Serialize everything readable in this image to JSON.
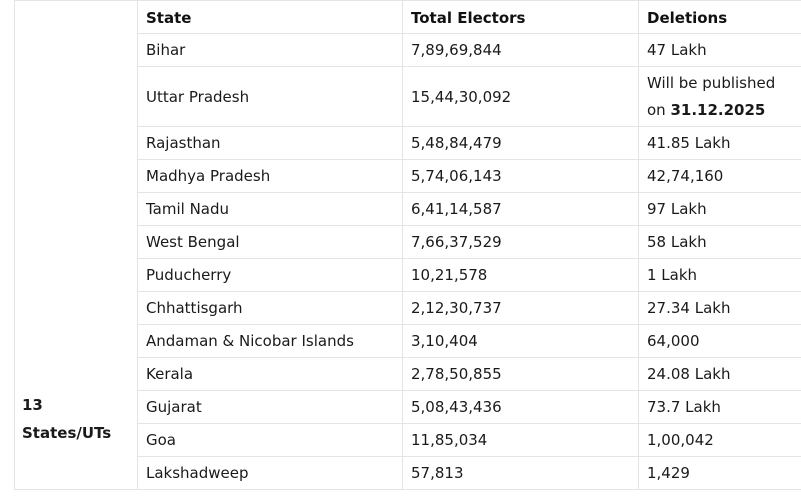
{
  "group_label": {
    "line1": "13",
    "line2": "States/UTs"
  },
  "headers": [
    "State",
    "Total Electors",
    "Deletions"
  ],
  "rows": [
    {
      "state": "Bihar",
      "electors": "7,89,69,844",
      "deletions": "47 Lakh"
    },
    {
      "state": "Uttar Pradesh",
      "electors": "15,44,30,092",
      "deletions_text": "Will be published on",
      "deletions_date": "31.12.2025"
    },
    {
      "state": "Rajasthan",
      "electors": "5,48,84,479",
      "deletions": "41.85 Lakh"
    },
    {
      "state": "Madhya Pradesh",
      "electors": "5,74,06,143",
      "deletions": "42,74,160"
    },
    {
      "state": "Tamil Nadu",
      "electors": "6,41,14,587",
      "deletions": "97 Lakh"
    },
    {
      "state": "West Bengal",
      "electors": "7,66,37,529",
      "deletions": "58 Lakh"
    },
    {
      "state": "Puducherry",
      "electors": "10,21,578",
      "deletions": "1 Lakh"
    },
    {
      "state": "Chhattisgarh",
      "electors": "2,12,30,737",
      "deletions": "27.34 Lakh"
    },
    {
      "state": "Andaman & Nicobar Islands",
      "electors": "3,10,404",
      "deletions": "64,000"
    },
    {
      "state": "Kerala",
      "electors": "2,78,50,855",
      "deletions": "24.08 Lakh"
    },
    {
      "state": "Gujarat",
      "electors": "5,08,43,436",
      "deletions": "73.7 Lakh"
    },
    {
      "state": "Goa",
      "electors": "11,85,034",
      "deletions": "1,00,042"
    },
    {
      "state": "Lakshadweep",
      "electors": "57,813",
      "deletions": "1,429"
    }
  ]
}
